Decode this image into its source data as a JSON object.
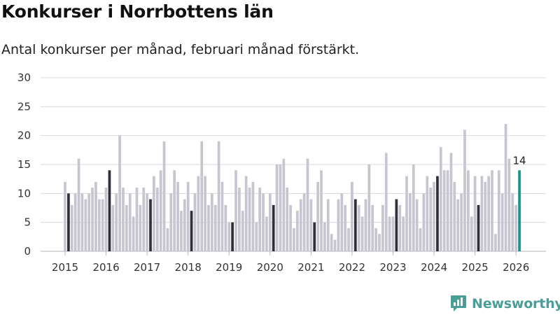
{
  "title": "Konkurser i Norrbottens län",
  "subtitle": "Antal konkurser per månad, februari månad förstärkt.",
  "brand": {
    "name": "Newsworthy",
    "icon": "newsworthy-logo-icon"
  },
  "colors": {
    "bar": "#c6c5d0",
    "highlight": "#2f2f3a",
    "latest": "#12968a",
    "grid": "#dadada",
    "brand": "#4a9e98"
  },
  "chart_data": {
    "type": "bar",
    "title": "Konkurser i Norrbottens län",
    "subtitle": "Antal konkurser per månad, februari månad förstärkt.",
    "xlabel": "",
    "ylabel": "",
    "ylim": [
      0,
      30
    ],
    "y_ticks": [
      0,
      5,
      10,
      15,
      20,
      25,
      30
    ],
    "grid": true,
    "start": "2015-01",
    "highlight_month": 2,
    "x_tick_labels": [
      "2015",
      "2016",
      "2017",
      "2018",
      "2019",
      "2020",
      "2021",
      "2022",
      "2023",
      "2024",
      "2025",
      "2026"
    ],
    "annotation": {
      "month": "2026-02",
      "label": "14"
    },
    "values": [
      12,
      10,
      8,
      10,
      16,
      10,
      9,
      10,
      11,
      12,
      9,
      9,
      11,
      14,
      8,
      10,
      20,
      11,
      8,
      10,
      6,
      11,
      8,
      11,
      10,
      9,
      13,
      11,
      14,
      19,
      4,
      10,
      14,
      12,
      7,
      9,
      12,
      7,
      10,
      13,
      19,
      13,
      8,
      10,
      8,
      19,
      12,
      8,
      5,
      5,
      14,
      11,
      7,
      13,
      11,
      12,
      5,
      11,
      10,
      6,
      10,
      8,
      15,
      15,
      16,
      11,
      8,
      4,
      7,
      9,
      10,
      16,
      9,
      5,
      12,
      14,
      5,
      9,
      3,
      2,
      9,
      10,
      8,
      4,
      12,
      9,
      8,
      6,
      9,
      15,
      8,
      4,
      3,
      8,
      17,
      6,
      6,
      9,
      8,
      6,
      13,
      10,
      15,
      9,
      4,
      10,
      13,
      11,
      12,
      13,
      18,
      14,
      14,
      17,
      12,
      9,
      10,
      21,
      14,
      6,
      13,
      8,
      13,
      12,
      13,
      14,
      3,
      14,
      10,
      22,
      16,
      10,
      8,
      14
    ]
  }
}
